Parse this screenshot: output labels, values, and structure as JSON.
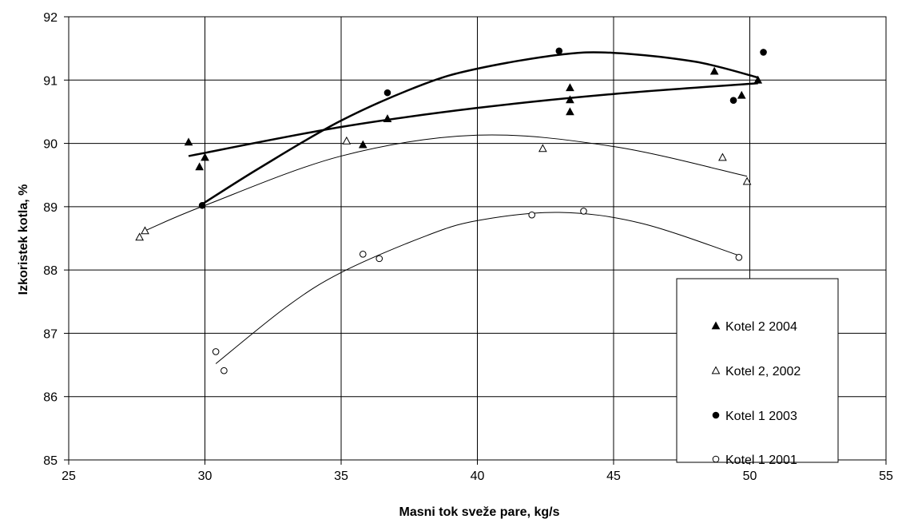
{
  "chart_data": {
    "type": "scatter",
    "title": "",
    "xlabel": "Masni tok sveže pare, kg/s",
    "ylabel": "Izkoristek kotla, %",
    "xlim": [
      25,
      55
    ],
    "ylim": [
      85,
      92
    ],
    "xticks": [
      25,
      30,
      35,
      40,
      45,
      50,
      55
    ],
    "yticks": [
      85,
      86,
      87,
      88,
      89,
      90,
      91,
      92
    ],
    "grid": true,
    "legend_position": "bottom-right",
    "series": [
      {
        "name": "Kotel 2 2004",
        "marker": "triangle-filled",
        "points": [
          [
            29.4,
            90.02
          ],
          [
            29.8,
            89.63
          ],
          [
            30.0,
            89.78
          ],
          [
            35.8,
            89.98
          ],
          [
            36.7,
            90.39
          ],
          [
            43.4,
            90.88
          ],
          [
            43.4,
            90.69
          ],
          [
            43.4,
            90.5
          ],
          [
            48.7,
            91.14
          ],
          [
            49.7,
            90.76
          ],
          [
            50.3,
            91.0
          ]
        ],
        "trend": {
          "kind": "polynomial",
          "range": [
            29.4,
            50.3
          ],
          "points": [
            [
              29.4,
              89.8
            ],
            [
              35,
              90.26
            ],
            [
              40,
              90.56
            ],
            [
              45,
              90.78
            ],
            [
              50.3,
              90.95
            ]
          ]
        }
      },
      {
        "name": "Kotel 2, 2002",
        "marker": "triangle-open",
        "points": [
          [
            27.6,
            88.52
          ],
          [
            27.8,
            88.62
          ],
          [
            35.2,
            90.04
          ],
          [
            42.4,
            89.92
          ],
          [
            49.0,
            89.78
          ],
          [
            49.9,
            89.4
          ]
        ],
        "trend": {
          "kind": "polynomial",
          "range": [
            27.8,
            49.9
          ],
          "points": [
            [
              27.8,
              88.62
            ],
            [
              30,
              89.02
            ],
            [
              35,
              89.8
            ],
            [
              40,
              90.13
            ],
            [
              45,
              89.95
            ],
            [
              49.9,
              89.48
            ]
          ]
        }
      },
      {
        "name": "Kotel 1 2003",
        "marker": "circle-filled",
        "points": [
          [
            29.9,
            89.02
          ],
          [
            36.7,
            90.8
          ],
          [
            43.0,
            91.46
          ],
          [
            49.4,
            90.68
          ],
          [
            50.5,
            91.44
          ]
        ],
        "trend": {
          "kind": "polynomial",
          "range": [
            29.9,
            50.3
          ],
          "points": [
            [
              29.9,
              89.04
            ],
            [
              32,
              89.61
            ],
            [
              35,
              90.36
            ],
            [
              38,
              90.93
            ],
            [
              40,
              91.18
            ],
            [
              43,
              91.4
            ],
            [
              45,
              91.43
            ],
            [
              48,
              91.29
            ],
            [
              50.3,
              91.04
            ]
          ]
        }
      },
      {
        "name": "Kotel 1 2001",
        "marker": "circle-open",
        "points": [
          [
            30.4,
            86.71
          ],
          [
            30.7,
            86.41
          ],
          [
            35.8,
            88.25
          ],
          [
            36.4,
            88.18
          ],
          [
            42.0,
            88.87
          ],
          [
            43.9,
            88.93
          ],
          [
            49.6,
            88.2
          ]
        ],
        "trend": {
          "kind": "polynomial",
          "range": [
            30.4,
            49.6
          ],
          "points": [
            [
              30.4,
              86.52
            ],
            [
              33,
              87.42
            ],
            [
              35,
              87.96
            ],
            [
              38,
              88.52
            ],
            [
              40,
              88.78
            ],
            [
              43,
              88.91
            ],
            [
              46,
              88.74
            ],
            [
              49.6,
              88.23
            ]
          ]
        }
      }
    ]
  },
  "colors": {
    "axis": "#000000",
    "grid": "#000000",
    "background": "#ffffff",
    "legend_border": "#000000"
  }
}
